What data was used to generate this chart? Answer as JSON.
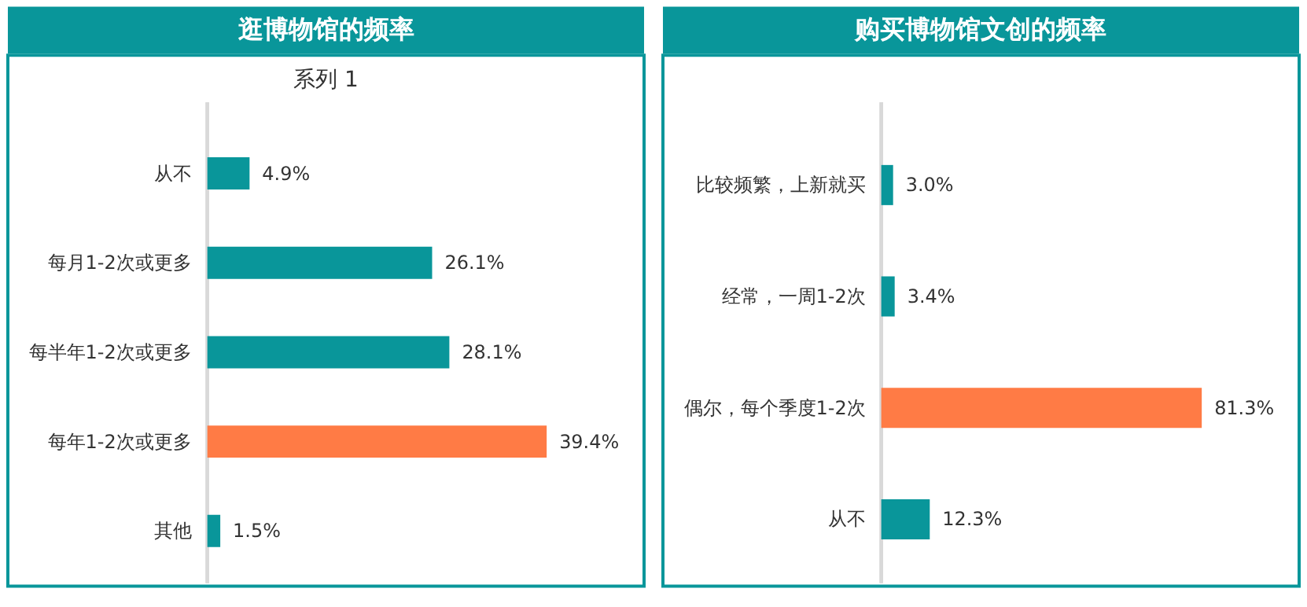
{
  "chart_data": [
    {
      "type": "bar",
      "orientation": "horizontal",
      "title": "逛博物馆的频率",
      "subtitle": "系列 1",
      "categories": [
        "从不",
        "每月1-2次或更多",
        "每半年1-2次或更多",
        "每年1-2次或更多",
        "其他"
      ],
      "values": [
        4.9,
        26.1,
        28.1,
        39.4,
        1.5
      ],
      "colors": [
        "#09969a",
        "#09969a",
        "#09969a",
        "#ff7b45",
        "#09969a"
      ],
      "value_labels": [
        "4.9%",
        "26.1%",
        "28.1%",
        "39.4%",
        "1.5%"
      ]
    },
    {
      "type": "bar",
      "orientation": "horizontal",
      "title": "购买博物馆文创的频率",
      "categories": [
        "比较频繁，上新就买",
        "经常，一周1-2次",
        "偶尔，每个季度1-2次",
        "从不"
      ],
      "values": [
        3.0,
        3.4,
        81.3,
        12.3
      ],
      "colors": [
        "#09969a",
        "#09969a",
        "#ff7b45",
        "#09969a"
      ],
      "value_labels": [
        "3.0%",
        "3.4%",
        "81.3%",
        "12.3%"
      ]
    }
  ]
}
